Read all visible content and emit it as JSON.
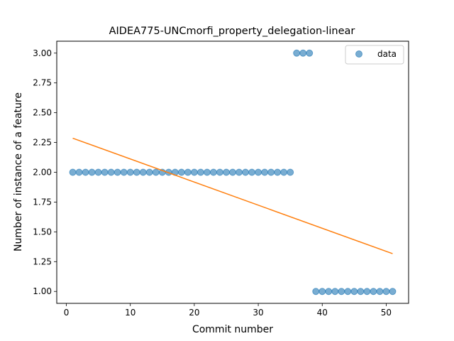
{
  "chart_data": {
    "type": "scatter",
    "title": "AIDEA775-UNCmorfi_property_delegation-linear",
    "xlabel": "Commit number",
    "ylabel": "Number of instance of a feature",
    "xlim": [
      -1.5,
      53.5
    ],
    "ylim": [
      0.9,
      3.1
    ],
    "xticks": [
      0,
      10,
      20,
      30,
      40,
      50
    ],
    "xtick_labels": [
      "0",
      "10",
      "20",
      "30",
      "40",
      "50"
    ],
    "yticks": [
      1.0,
      1.25,
      1.5,
      1.75,
      2.0,
      2.25,
      2.5,
      2.75,
      3.0
    ],
    "ytick_labels": [
      "1.00",
      "1.25",
      "1.50",
      "1.75",
      "2.00",
      "2.25",
      "2.50",
      "2.75",
      "3.00"
    ],
    "grid": false,
    "legend_position": "top-right",
    "legend": [
      "data"
    ],
    "colors": {
      "data": "#1f77b4",
      "fit": "#ff7f0e"
    },
    "series": [
      {
        "name": "data",
        "kind": "scatter",
        "x": [
          1,
          2,
          3,
          4,
          5,
          6,
          7,
          8,
          9,
          10,
          11,
          12,
          13,
          14,
          15,
          16,
          17,
          18,
          19,
          20,
          21,
          22,
          23,
          24,
          25,
          26,
          27,
          28,
          29,
          30,
          31,
          32,
          33,
          34,
          35,
          36,
          37,
          38,
          39,
          40,
          41,
          42,
          43,
          44,
          45,
          46,
          47,
          48,
          49,
          50,
          51
        ],
        "y": [
          2,
          2,
          2,
          2,
          2,
          2,
          2,
          2,
          2,
          2,
          2,
          2,
          2,
          2,
          2,
          2,
          2,
          2,
          2,
          2,
          2,
          2,
          2,
          2,
          2,
          2,
          2,
          2,
          2,
          2,
          2,
          2,
          2,
          2,
          2,
          3,
          3,
          3,
          1,
          1,
          1,
          1,
          1,
          1,
          1,
          1,
          1,
          1,
          1,
          1,
          1
        ]
      },
      {
        "kind": "line",
        "x": [
          1,
          51
        ],
        "y": [
          2.286,
          1.317
        ]
      }
    ]
  }
}
